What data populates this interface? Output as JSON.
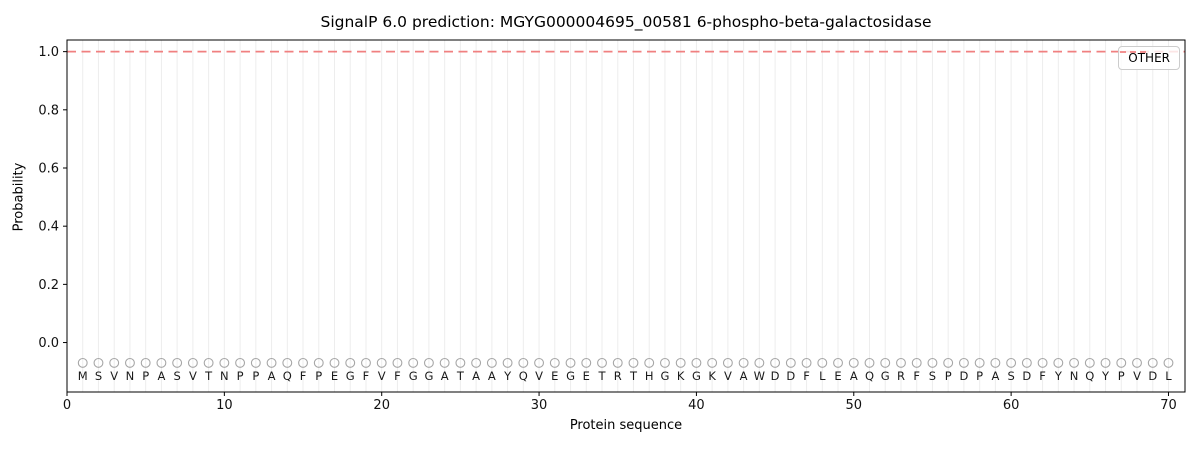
{
  "title": "SignalP 6.0 prediction: MGYG000004695_00581 6-phospho-beta-galactosidase",
  "legend": {
    "label": "OTHER",
    "position": "upper-right"
  },
  "chart_data": {
    "type": "line",
    "title": "SignalP 6.0 prediction: MGYG000004695_00581 6-phospho-beta-galactosidase",
    "xlabel": "Protein sequence",
    "ylabel": "Probability",
    "xlim": [
      0,
      71.05
    ],
    "ylim": [
      -0.17,
      1.04
    ],
    "x_ticks": [
      0,
      10,
      20,
      30,
      40,
      50,
      60,
      70
    ],
    "y_ticks": [
      0.0,
      0.2,
      0.4,
      0.6,
      0.8,
      1.0
    ],
    "y_tick_labels": [
      "0.0",
      "0.2",
      "0.4",
      "0.6",
      "0.8",
      "1.0"
    ],
    "grid": {
      "vertical_per_residue": true,
      "horizontal": false,
      "color": "#ededed"
    },
    "sequence": "MSVNPASVTNPPAQFPEGFVFGGATAAYQVEGETRTHGKGKVAWDDFLEAQGRFSPDPASDFYNQYPVDL",
    "sequence_start_position": 1,
    "sequence_length": 70,
    "series": [
      {
        "name": "OTHER",
        "plot_style": "hline-full-width",
        "color": "#f08080",
        "linestyle": "dashed",
        "y": 1.0,
        "values": [
          1.0,
          1.0,
          1.0,
          1.0,
          1.0,
          1.0,
          1.0,
          1.0,
          1.0,
          1.0,
          1.0,
          1.0,
          1.0,
          1.0,
          1.0,
          1.0,
          1.0,
          1.0,
          1.0,
          1.0,
          1.0,
          1.0,
          1.0,
          1.0,
          1.0,
          1.0,
          1.0,
          1.0,
          1.0,
          1.0,
          1.0,
          1.0,
          1.0,
          1.0,
          1.0,
          1.0,
          1.0,
          1.0,
          1.0,
          1.0,
          1.0,
          1.0,
          1.0,
          1.0,
          1.0,
          1.0,
          1.0,
          1.0,
          1.0,
          1.0,
          1.0,
          1.0,
          1.0,
          1.0,
          1.0,
          1.0,
          1.0,
          1.0,
          1.0,
          1.0,
          1.0,
          1.0,
          1.0,
          1.0,
          1.0,
          1.0,
          1.0,
          1.0,
          1.0,
          1.0
        ]
      }
    ],
    "markers": {
      "symbol": "open-circle",
      "y": -0.07,
      "color": "#a6a6a6",
      "per_residue": true
    },
    "letters_y": -0.115,
    "legend_position": "upper-right",
    "colors": {
      "spine": "#000000",
      "text": "#1a1a1a",
      "tick_label": "#111111"
    }
  }
}
